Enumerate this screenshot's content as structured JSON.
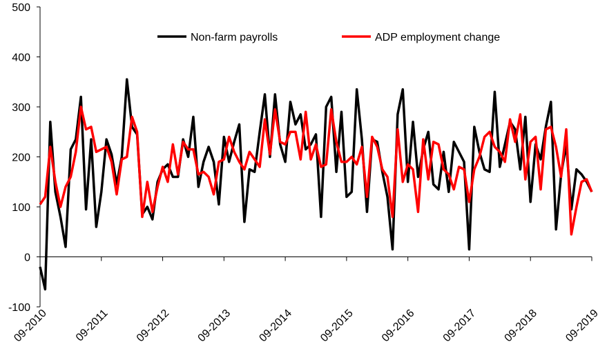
{
  "chart_data": {
    "type": "line",
    "categories": [
      "09-2010",
      null,
      null,
      null,
      null,
      null,
      null,
      null,
      null,
      null,
      null,
      null,
      "09-2011",
      null,
      null,
      null,
      null,
      null,
      null,
      null,
      null,
      null,
      null,
      null,
      "09-2012",
      null,
      null,
      null,
      null,
      null,
      null,
      null,
      null,
      null,
      null,
      null,
      "09-2013",
      null,
      null,
      null,
      null,
      null,
      null,
      null,
      null,
      null,
      null,
      null,
      "09-2014",
      null,
      null,
      null,
      null,
      null,
      null,
      null,
      null,
      null,
      null,
      null,
      "09-2015",
      null,
      null,
      null,
      null,
      null,
      null,
      null,
      null,
      null,
      null,
      null,
      "09-2016",
      null,
      null,
      null,
      null,
      null,
      null,
      null,
      null,
      null,
      null,
      null,
      "09-2017",
      null,
      null,
      null,
      null,
      null,
      null,
      null,
      null,
      null,
      null,
      null,
      "09-2018",
      null,
      null,
      null,
      null,
      null,
      null,
      null,
      null,
      null,
      null,
      null,
      "09-2019"
    ],
    "series": [
      {
        "name": "Non-farm payrolls",
        "color": "#000000",
        "values": [
          -20,
          -65,
          270,
          130,
          80,
          20,
          215,
          235,
          320,
          95,
          235,
          60,
          130,
          235,
          205,
          145,
          200,
          355,
          260,
          245,
          85,
          100,
          75,
          150,
          175,
          185,
          160,
          160,
          235,
          200,
          280,
          140,
          190,
          220,
          190,
          105,
          240,
          190,
          230,
          265,
          70,
          175,
          170,
          250,
          325,
          200,
          325,
          225,
          190,
          310,
          265,
          285,
          215,
          225,
          245,
          80,
          300,
          320,
          170,
          290,
          120,
          130,
          335,
          235,
          90,
          235,
          230,
          170,
          120,
          15,
          285,
          335,
          150,
          270,
          160,
          215,
          250,
          145,
          135,
          210,
          130,
          230,
          210,
          190,
          15,
          260,
          210,
          175,
          170,
          330,
          180,
          225,
          270,
          255,
          175,
          280,
          110,
          225,
          195,
          260,
          310,
          55,
          165,
          225,
          95,
          175,
          165,
          150,
          130
        ]
      },
      {
        "name": "ADP employment change",
        "color": "#ff0000",
        "values": [
          105,
          120,
          220,
          150,
          100,
          140,
          160,
          210,
          300,
          255,
          260,
          210,
          215,
          220,
          190,
          125,
          195,
          200,
          280,
          250,
          80,
          150,
          90,
          140,
          180,
          150,
          225,
          165,
          230,
          215,
          215,
          165,
          170,
          160,
          125,
          190,
          195,
          240,
          210,
          190,
          175,
          210,
          195,
          180,
          275,
          205,
          295,
          230,
          225,
          250,
          250,
          195,
          290,
          195,
          225,
          180,
          185,
          295,
          230,
          190,
          190,
          200,
          185,
          220,
          120,
          240,
          220,
          175,
          160,
          80,
          255,
          150,
          185,
          175,
          90,
          235,
          155,
          230,
          225,
          175,
          165,
          135,
          180,
          175,
          110,
          175,
          200,
          240,
          250,
          220,
          210,
          190,
          275,
          230,
          285,
          155,
          230,
          240,
          135,
          255,
          260,
          220,
          160,
          255,
          45,
          100,
          150,
          155,
          130
        ]
      }
    ],
    "ylim": [
      -100,
      500
    ],
    "yticks": [
      -100,
      0,
      100,
      200,
      300,
      400,
      500
    ],
    "grid": false,
    "legend": "top"
  }
}
